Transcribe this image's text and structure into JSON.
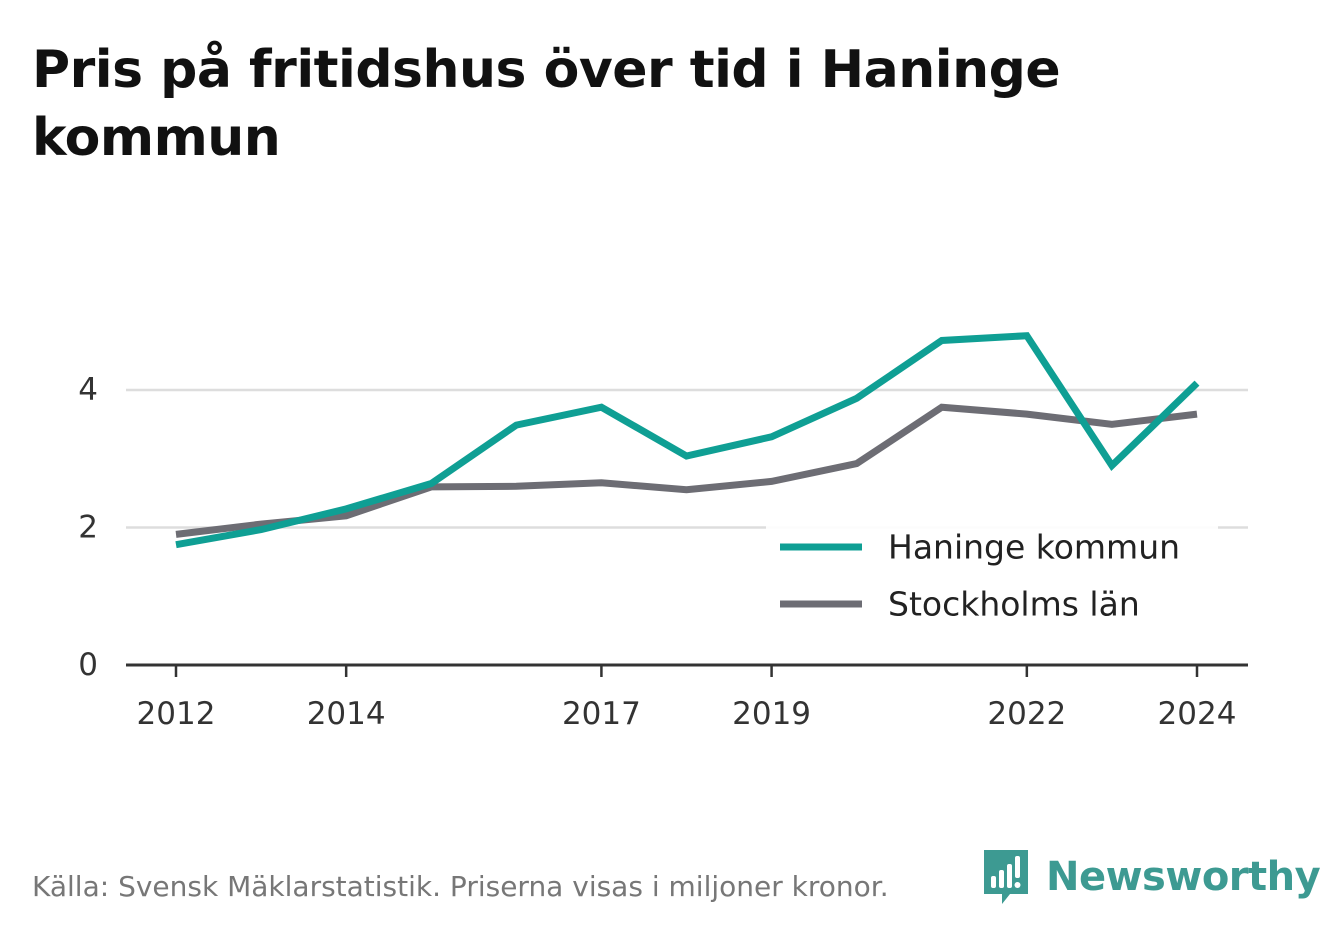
{
  "title": "Pris på fritidshus över tid i Haninge kommun",
  "source": "Källa: Svensk Mäklarstatistik. Priserna visas i miljoner kronor.",
  "brand": {
    "name": "Newsworthy",
    "icon": "bar-chart-speech-bubble-icon",
    "color": "#3d9a92"
  },
  "chart_data": {
    "type": "line",
    "x": [
      2012,
      2013,
      2014,
      2015,
      2016,
      2017,
      2018,
      2019,
      2020,
      2021,
      2022,
      2023,
      2024
    ],
    "x_tick_labels": [
      "2012",
      "2014",
      "2017",
      "2019",
      "2022",
      "2024"
    ],
    "y_tick_labels": [
      "0",
      "2",
      "4"
    ],
    "ylim": [
      0,
      5
    ],
    "grid": true,
    "legend_position": "bottom-right",
    "series": [
      {
        "name": "Haninge kommun",
        "color": "#0f9f94",
        "values": [
          1.75,
          1.97,
          2.27,
          2.64,
          3.49,
          3.75,
          3.04,
          3.32,
          3.88,
          4.72,
          4.79,
          2.9,
          4.1
        ]
      },
      {
        "name": "Stockholms län",
        "color": "#6d6d74",
        "values": [
          1.9,
          2.05,
          2.17,
          2.59,
          2.6,
          2.65,
          2.55,
          2.67,
          2.93,
          3.75,
          3.65,
          3.5,
          3.65
        ]
      }
    ]
  }
}
